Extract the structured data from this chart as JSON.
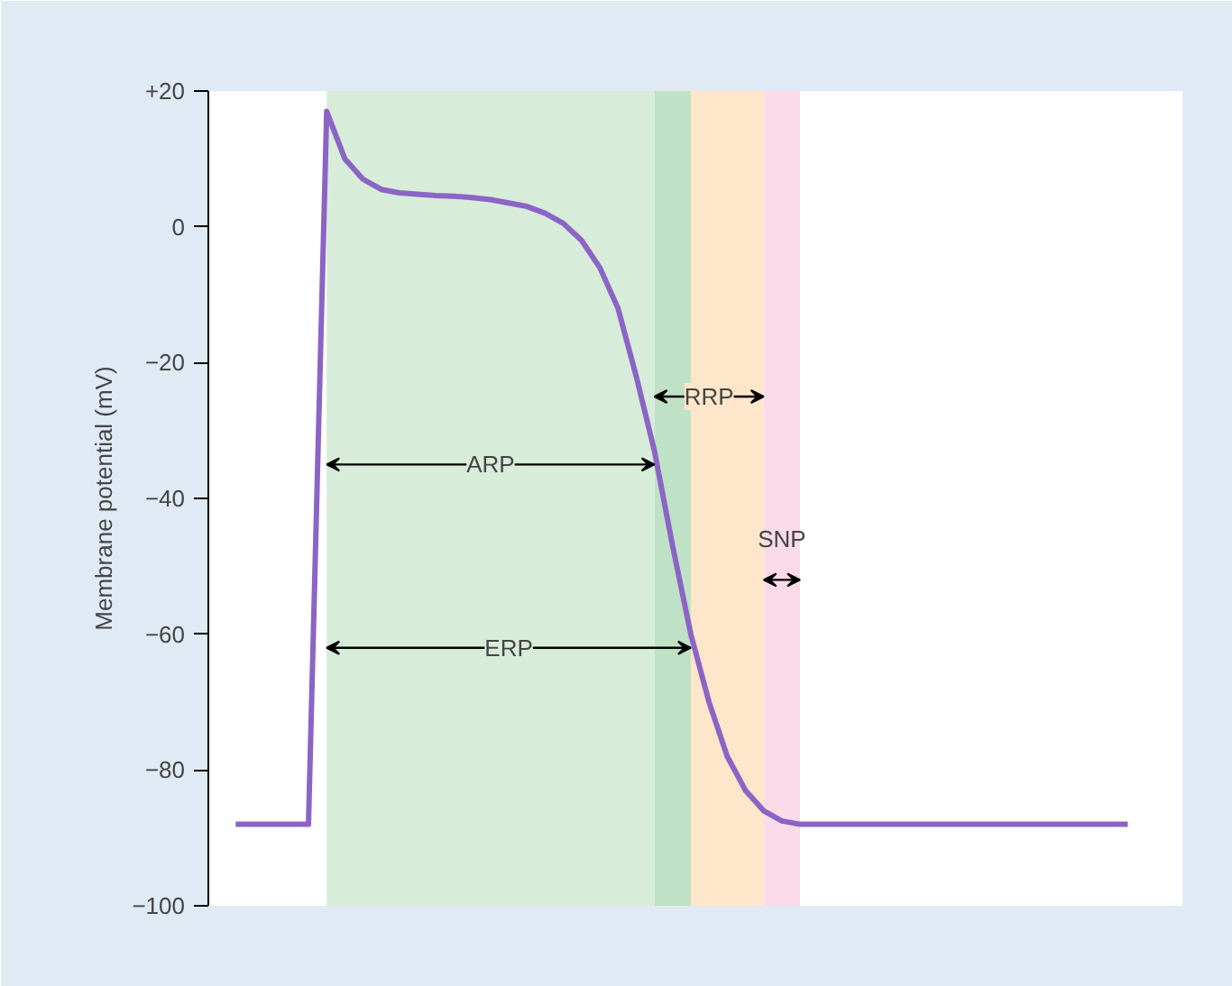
{
  "chart_data": {
    "type": "line",
    "ylabel": "Membrane potential (mV)",
    "categories": [
      null,
      null,
      null,
      null,
      null,
      null,
      null,
      null,
      null,
      null,
      null,
      null,
      null,
      null,
      null,
      null,
      null,
      null,
      null,
      null,
      null,
      null,
      null,
      null,
      null,
      null,
      null,
      null,
      null,
      null,
      null,
      null,
      null,
      null,
      null,
      null,
      null,
      null,
      null,
      null,
      null,
      null,
      null,
      null,
      null,
      null,
      null,
      null,
      null,
      null
    ],
    "series": [
      {
        "color": "#8b64c6",
        "values": [
          -88,
          -88,
          -88,
          -88,
          -88,
          17,
          10,
          7,
          5.5,
          5,
          4.8,
          4.6,
          4.5,
          4.3,
          4,
          3.5,
          3,
          2,
          0.5,
          -2,
          -6,
          -12,
          -22,
          -33,
          -47,
          -60,
          -70,
          -78,
          -83,
          -86,
          -87.5,
          -88,
          -88,
          -88,
          -88,
          -88,
          -88,
          -88,
          -88,
          -88,
          -88,
          -88,
          -88,
          -88,
          -88,
          -88,
          -88,
          -88,
          -88,
          -88
        ]
      }
    ],
    "ylim": [
      -100,
      20
    ],
    "yticks": [
      {
        "value": 20,
        "label": "+20"
      },
      {
        "value": 0,
        "label": "0"
      },
      {
        "value": -20,
        "label": "−20"
      },
      {
        "value": -40,
        "label": "−40"
      },
      {
        "value": -60,
        "label": "−60"
      },
      {
        "value": -80,
        "label": "−80"
      },
      {
        "value": -100,
        "label": "−100"
      }
    ],
    "tick_labels": "y",
    "grid": false,
    "marker": "none",
    "line_style": "solid",
    "annotations": [
      "ARP",
      "ERP",
      "RRP",
      "SNP"
    ]
  }
}
